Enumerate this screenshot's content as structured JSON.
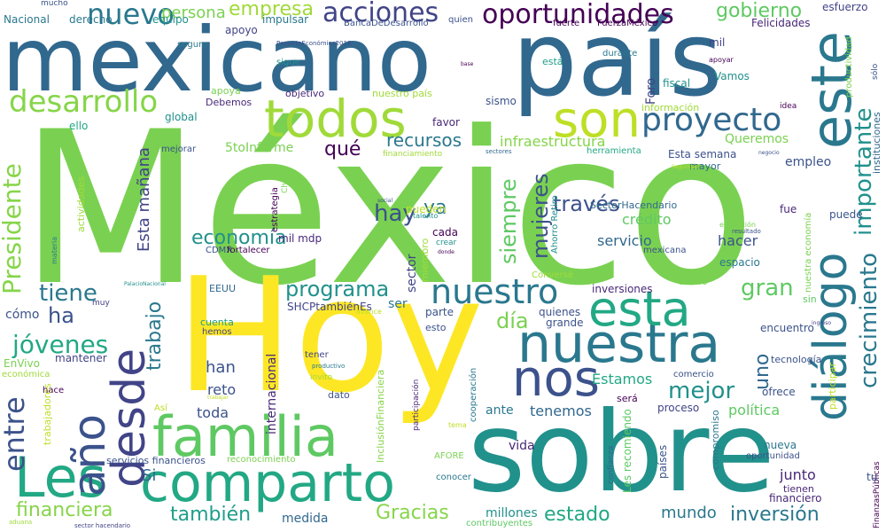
{
  "words": [
    {
      "text": "México",
      "color": "#7ad151"
    },
    {
      "text": "Hoy",
      "color": "#fde725"
    },
    {
      "text": "sobre",
      "color": "#21918c"
    },
    {
      "text": "país",
      "color": "#31688e"
    },
    {
      "text": "mexicano",
      "color": "#31688e"
    },
    {
      "text": "familia",
      "color": "#5ec962"
    },
    {
      "text": "comparto",
      "color": "#22a884"
    },
    {
      "text": "Les",
      "color": "#22a884"
    },
    {
      "text": "este",
      "color": "#2a788e"
    },
    {
      "text": "todos",
      "color": "#a0da39"
    },
    {
      "text": "son",
      "color": "#bddf26"
    },
    {
      "text": "nuestra",
      "color": "#2a788e"
    },
    {
      "text": "esta",
      "color": "#22a884"
    },
    {
      "text": "diálogo",
      "color": "#2a788e"
    },
    {
      "text": "desde",
      "color": "#414487"
    },
    {
      "text": "año",
      "color": "#3b528b"
    },
    {
      "text": "nos",
      "color": "#3b528b"
    },
    {
      "text": "nuestro",
      "color": "#2a788e"
    },
    {
      "text": "proyecto",
      "color": "#31688e"
    },
    {
      "text": "oportunidades",
      "color": "#440154"
    },
    {
      "text": "desarrollo",
      "color": "#86d549"
    },
    {
      "text": "nuevo",
      "color": "#2a788e"
    },
    {
      "text": "acciones",
      "color": "#414487"
    },
    {
      "text": "empresa",
      "color": "#a0da39"
    },
    {
      "text": "gobierno",
      "color": "#5ec962"
    },
    {
      "text": "crecimiento",
      "color": "#2a788e"
    },
    {
      "text": "importante",
      "color": "#21918c"
    },
    {
      "text": "Presidente",
      "color": "#86d549"
    },
    {
      "text": "entre",
      "color": "#3b528b"
    },
    {
      "text": "tiene",
      "color": "#2a788e"
    },
    {
      "text": "ha",
      "color": "#3b528b"
    },
    {
      "text": "jóvenes",
      "color": "#22a884"
    },
    {
      "text": "financiera",
      "color": "#86d549"
    },
    {
      "text": "también",
      "color": "#1f9e89"
    },
    {
      "text": "Gracias",
      "color": "#86d549"
    },
    {
      "text": "estado",
      "color": "#22a884"
    },
    {
      "text": "inversión",
      "color": "#2a788e"
    },
    {
      "text": "mundo",
      "color": "#2a788e"
    },
    {
      "text": "mejor",
      "color": "#21918c"
    },
    {
      "text": "gran",
      "color": "#5ec962"
    },
    {
      "text": "programa",
      "color": "#21918c"
    },
    {
      "text": "economía",
      "color": "#21918c"
    },
    {
      "text": "recursos",
      "color": "#2a788e"
    },
    {
      "text": "qué",
      "color": "#440154"
    },
    {
      "text": "hay",
      "color": "#3b528b"
    },
    {
      "text": "ya",
      "color": "#2a788e"
    },
    {
      "text": "mujeres",
      "color": "#3b528b"
    },
    {
      "text": "siempre",
      "color": "#5ec962"
    },
    {
      "text": "través",
      "color": "#3b528b"
    },
    {
      "text": "día",
      "color": "#7ad151"
    },
    {
      "text": "trabajo",
      "color": "#2a788e"
    },
    {
      "text": "uno",
      "color": "#31688e"
    },
    {
      "text": "Esta mañana",
      "color": "#414487"
    },
    {
      "text": "infraestructura",
      "color": "#86d549"
    },
    {
      "text": "persona",
      "color": "#7ad151"
    },
    {
      "text": "Si",
      "color": "#31688e"
    },
    {
      "text": "han",
      "color": "#3b528b"
    },
    {
      "text": "reto",
      "color": "#3b528b"
    },
    {
      "text": "toda",
      "color": "#3b528b"
    },
    {
      "text": "Estamos",
      "color": "#22a884"
    },
    {
      "text": "tenemos",
      "color": "#31688e"
    },
    {
      "text": "ante",
      "color": "#2a788e"
    },
    {
      "text": "política",
      "color": "#5ec962"
    },
    {
      "text": "junto",
      "color": "#482878"
    },
    {
      "text": "medida",
      "color": "#31688e"
    },
    {
      "text": "millones",
      "color": "#21918c"
    },
    {
      "text": "Nacional",
      "color": "#2a788e"
    },
    {
      "text": "derecho",
      "color": "#2a788e"
    },
    {
      "text": "equipo",
      "color": "#21918c"
    },
    {
      "text": "impulsar",
      "color": "#2a788e"
    },
    {
      "text": "mucho",
      "color": "#3b528b"
    },
    {
      "text": "apoyo",
      "color": "#414487"
    },
    {
      "text": "seguro",
      "color": "#2a788e"
    },
    {
      "text": "PaqueteEconómico2018",
      "color": "#3b528b"
    },
    {
      "text": "BancaDeDesarrollo",
      "color": "#3b528b"
    },
    {
      "text": "quien",
      "color": "#3b528b"
    },
    {
      "text": "fuerte",
      "color": "#440154"
    },
    {
      "text": "FuerzaMéxico",
      "color": "#440154"
    },
    {
      "text": "esfuerzo",
      "color": "#414487"
    },
    {
      "text": "Felicidades",
      "color": "#482878"
    },
    {
      "text": "mil",
      "color": "#414487"
    },
    {
      "text": "apoyar",
      "color": "#440154"
    },
    {
      "text": "sigue",
      "color": "#21918c"
    },
    {
      "text": "base",
      "color": "#440154"
    },
    {
      "text": "está",
      "color": "#1f9e89"
    },
    {
      "text": "durante",
      "color": "#2a788e"
    },
    {
      "text": "Foro",
      "color": "#414487"
    },
    {
      "text": "fiscal",
      "color": "#21918c"
    },
    {
      "text": "Vamos",
      "color": "#21918c"
    },
    {
      "text": "productividad",
      "color": "#7ad151"
    },
    {
      "text": "sólo",
      "color": "#3b528b"
    },
    {
      "text": "instituciones",
      "color": "#31688e"
    },
    {
      "text": "objetivo",
      "color": "#482878"
    },
    {
      "text": "nuestro país",
      "color": "#a0da39"
    },
    {
      "text": "sismo",
      "color": "#3b528b"
    },
    {
      "text": "apoya",
      "color": "#7ad151"
    },
    {
      "text": "Debemos",
      "color": "#482878"
    },
    {
      "text": "información",
      "color": "#a0da39"
    },
    {
      "text": "idea",
      "color": "#440154"
    },
    {
      "text": "global",
      "color": "#21918c"
    },
    {
      "text": "favor",
      "color": "#482878"
    },
    {
      "text": "ello",
      "color": "#22a884"
    },
    {
      "text": "mejorar",
      "color": "#3b528b"
    },
    {
      "text": "5toInforme",
      "color": "#7ad151"
    },
    {
      "text": "financiamiento",
      "color": "#a0da39"
    },
    {
      "text": "sectores",
      "color": "#31688e"
    },
    {
      "text": "herramienta",
      "color": "#22a884"
    },
    {
      "text": "Esta semana",
      "color": "#3b528b"
    },
    {
      "text": "mayor",
      "color": "#31688e"
    },
    {
      "text": "Queremos",
      "color": "#7ad151"
    },
    {
      "text": "empleo",
      "color": "#3b528b"
    },
    {
      "text": "negocio",
      "color": "#3b528b"
    },
    {
      "text": "Seguridad",
      "color": "#bddf26"
    },
    {
      "text": "actividades",
      "color": "#a0da39"
    },
    {
      "text": "estrategia",
      "color": "#440154"
    },
    {
      "text": "Chiapa",
      "color": "#7ad151"
    },
    {
      "text": "social",
      "color": "#3b528b"
    },
    {
      "text": "talento",
      "color": "#21918c"
    },
    {
      "text": "pueden",
      "color": "#bddf26"
    },
    {
      "text": "crédito",
      "color": "#5ec962"
    },
    {
      "text": "SectorHacendario",
      "color": "#31688e"
    },
    {
      "text": "servicio",
      "color": "#31688e"
    },
    {
      "text": "hacer",
      "color": "#3b528b"
    },
    {
      "text": "espacio",
      "color": "#2a788e"
    },
    {
      "text": "resultado",
      "color": "#3b528b"
    },
    {
      "text": "educación",
      "color": "#7ad151"
    },
    {
      "text": "fue",
      "color": "#482878"
    },
    {
      "text": "puede",
      "color": "#3b528b"
    },
    {
      "text": "nuestra economía",
      "color": "#7ad151"
    },
    {
      "text": "Ahorro Retiro",
      "color": "#21918c"
    },
    {
      "text": "mil mdp",
      "color": "#482878"
    },
    {
      "text": "cada",
      "color": "#440154"
    },
    {
      "text": "crear",
      "color": "#21918c"
    },
    {
      "text": "donde",
      "color": "#440154"
    },
    {
      "text": "mexicana",
      "color": "#3b528b"
    },
    {
      "text": "CDMX",
      "color": "#3b528b"
    },
    {
      "text": "fortalecer",
      "color": "#440154"
    },
    {
      "text": "materia",
      "color": "#2a788e"
    },
    {
      "text": "sector",
      "color": "#414487"
    },
    {
      "text": "miembro",
      "color": "#a0da39"
    },
    {
      "text": "PalacioNacional",
      "color": "#21918c"
    },
    {
      "text": "Conversé",
      "color": "#a0da39"
    },
    {
      "text": "ahorro",
      "color": "#7ad151"
    },
    {
      "text": "EEUU",
      "color": "#31688e"
    },
    {
      "text": "SHCPtambiénEs",
      "color": "#414487"
    },
    {
      "text": "ser",
      "color": "#2a788e"
    },
    {
      "text": "inversiones",
      "color": "#482878"
    },
    {
      "text": "sin",
      "color": "#5ec962"
    },
    {
      "text": "quienes",
      "color": "#3b528b"
    },
    {
      "text": "grande",
      "color": "#3b528b"
    },
    {
      "text": "cómo",
      "color": "#3b528b"
    },
    {
      "text": "muy",
      "color": "#414487"
    },
    {
      "text": "cuenta",
      "color": "#1f9e89"
    },
    {
      "text": "hemos",
      "color": "#414487"
    },
    {
      "text": "avance",
      "color": "#bddf26"
    },
    {
      "text": "parte",
      "color": "#3b528b"
    },
    {
      "text": "encuentro",
      "color": "#3b528b"
    },
    {
      "text": "ingreso",
      "color": "#414487"
    },
    {
      "text": "participar",
      "color": "#bddf26"
    },
    {
      "text": "internacional",
      "color": "#482878"
    },
    {
      "text": "esto",
      "color": "#3b528b"
    },
    {
      "text": "InclusiónFinanciera",
      "color": "#86d549"
    },
    {
      "text": "EnVivo",
      "color": "#7ad151"
    },
    {
      "text": "mantener",
      "color": "#414487"
    },
    {
      "text": "económica",
      "color": "#a0da39"
    },
    {
      "text": "hace",
      "color": "#440154"
    },
    {
      "text": "tener",
      "color": "#414487"
    },
    {
      "text": "productivo",
      "color": "#2a788e"
    },
    {
      "text": "invito",
      "color": "#a0da39"
    },
    {
      "text": "participación",
      "color": "#482878"
    },
    {
      "text": "cooperación",
      "color": "#2a788e"
    },
    {
      "text": "comercio",
      "color": "#3b528b"
    },
    {
      "text": "tecnología",
      "color": "#3b528b"
    },
    {
      "text": "ofrece",
      "color": "#3b528b"
    },
    {
      "text": "será",
      "color": "#440154"
    },
    {
      "text": "proceso",
      "color": "#414487"
    },
    {
      "text": "Así",
      "color": "#bddf26"
    },
    {
      "text": "trabajar",
      "color": "#bddf26"
    },
    {
      "text": "trabajadores",
      "color": "#bddf26"
    },
    {
      "text": "dato",
      "color": "#3b528b"
    },
    {
      "text": "tema",
      "color": "#bddf26"
    },
    {
      "text": "vida",
      "color": "#482878"
    },
    {
      "text": "confianza",
      "color": "#31688e"
    },
    {
      "text": "países",
      "color": "#3b528b"
    },
    {
      "text": "compromiso",
      "color": "#2a788e"
    },
    {
      "text": "nueva",
      "color": "#2a788e"
    },
    {
      "text": "oportunidad",
      "color": "#3b528b"
    },
    {
      "text": "tienen",
      "color": "#482878"
    },
    {
      "text": "financiero",
      "color": "#482878"
    },
    {
      "text": "servicios financieros",
      "color": "#3b528b"
    },
    {
      "text": "reconocimiento",
      "color": "#7ad151"
    },
    {
      "text": "AFORE",
      "color": "#7ad151"
    },
    {
      "text": "conocer",
      "color": "#2a788e"
    },
    {
      "text": "Les recomiendo",
      "color": "#5ec962"
    },
    {
      "text": "contribuyentes",
      "color": "#5ec962"
    },
    {
      "text": "aduana",
      "color": "#a0da39"
    },
    {
      "text": "sector hacendario",
      "color": "#414487"
    },
    {
      "text": "FinanzasPúblicas",
      "color": "#440154"
    },
    {
      "text": "tu",
      "color": "#3b528b"
    }
  ]
}
